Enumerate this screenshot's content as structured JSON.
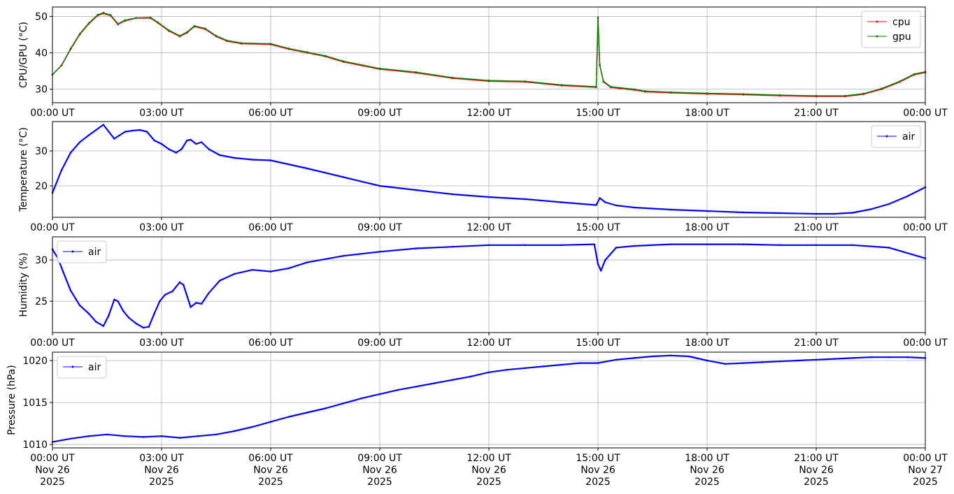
{
  "chart_data": [
    {
      "type": "line",
      "ylabel": "CPU/GPU (°C)",
      "ylim": [
        26.3,
        52.6
      ],
      "yticks": [
        30,
        40,
        50
      ],
      "xlim": [
        0,
        24
      ],
      "xticks": [
        0,
        3,
        6,
        9,
        12,
        15,
        18,
        21,
        24
      ],
      "xtick_labels": [
        "00:00 UT",
        "03:00 UT",
        "06:00 UT",
        "09:00 UT",
        "12:00 UT",
        "15:00 UT",
        "18:00 UT",
        "21:00 UT",
        "00:00 UT"
      ],
      "grid": true,
      "legend": "upper-right",
      "series": [
        {
          "name": "cpu",
          "color": "#ff0000",
          "x": [
            0,
            0.25,
            0.5,
            0.75,
            1.0,
            1.25,
            1.4,
            1.6,
            1.8,
            2.0,
            2.3,
            2.7,
            2.9,
            3.2,
            3.5,
            3.7,
            3.9,
            4.2,
            4.5,
            4.8,
            5.2,
            6.0,
            6.5,
            7.0,
            7.5,
            8.0,
            9.0,
            10.0,
            11.0,
            12.0,
            13.0,
            14.0,
            14.95,
            15.0,
            15.05,
            15.15,
            15.35,
            15.6,
            16.0,
            16.3,
            17.0,
            18.0,
            19.0,
            20.0,
            21.0,
            21.8,
            22.3,
            22.8,
            23.3,
            23.7,
            24.0
          ],
          "y": [
            34.0,
            36.5,
            41.0,
            45.0,
            48.0,
            50.3,
            50.8,
            50.2,
            47.8,
            48.8,
            49.5,
            49.5,
            48.2,
            46.0,
            44.5,
            45.5,
            47.2,
            46.5,
            44.5,
            43.2,
            42.5,
            42.3,
            41.0,
            40.0,
            39.0,
            37.5,
            35.5,
            34.5,
            33.0,
            32.2,
            32.0,
            31.0,
            30.5,
            49.5,
            36.5,
            32.0,
            30.5,
            30.2,
            29.8,
            29.3,
            29.0,
            28.7,
            28.5,
            28.2,
            28.0,
            28.0,
            28.6,
            30.0,
            32.0,
            34.0,
            34.6
          ]
        },
        {
          "name": "gpu",
          "color": "#008000",
          "x": [
            0,
            0.25,
            0.5,
            0.75,
            1.0,
            1.25,
            1.4,
            1.6,
            1.8,
            2.0,
            2.3,
            2.7,
            2.9,
            3.2,
            3.5,
            3.7,
            3.9,
            4.2,
            4.5,
            4.8,
            5.2,
            6.0,
            6.5,
            7.0,
            7.5,
            8.0,
            9.0,
            10.0,
            11.0,
            12.0,
            13.0,
            14.0,
            14.95,
            15.0,
            15.05,
            15.15,
            15.35,
            15.6,
            16.0,
            16.3,
            17.0,
            18.0,
            19.0,
            20.0,
            21.0,
            21.8,
            22.3,
            22.8,
            23.3,
            23.7,
            24.0
          ],
          "y": [
            34.0,
            36.6,
            41.2,
            45.2,
            48.2,
            50.5,
            51.0,
            50.4,
            48.0,
            49.0,
            49.6,
            49.7,
            48.4,
            46.2,
            44.7,
            45.7,
            47.4,
            46.7,
            44.7,
            43.4,
            42.7,
            42.5,
            41.2,
            40.2,
            39.2,
            37.7,
            35.7,
            34.7,
            33.2,
            32.4,
            32.2,
            31.2,
            30.7,
            49.7,
            36.7,
            32.2,
            30.7,
            30.4,
            30.0,
            29.5,
            29.2,
            28.9,
            28.7,
            28.4,
            28.2,
            28.2,
            28.8,
            30.2,
            32.2,
            34.2,
            34.8
          ]
        }
      ]
    },
    {
      "type": "line",
      "ylabel": "Temperature (°C)",
      "ylim": [
        11.0,
        38.4
      ],
      "yticks": [
        20,
        30
      ],
      "xlim": [
        0,
        24
      ],
      "xticks": [
        0,
        3,
        6,
        9,
        12,
        15,
        18,
        21,
        24
      ],
      "xtick_labels": [
        "00:00 UT",
        "03:00 UT",
        "06:00 UT",
        "09:00 UT",
        "12:00 UT",
        "15:00 UT",
        "18:00 UT",
        "21:00 UT",
        "00:00 UT"
      ],
      "grid": true,
      "legend": "upper-right",
      "series": [
        {
          "name": "air",
          "color": "#0000ff",
          "x": [
            0,
            0.25,
            0.5,
            0.75,
            1.0,
            1.2,
            1.4,
            1.55,
            1.7,
            1.85,
            2.0,
            2.2,
            2.4,
            2.6,
            2.8,
            3.0,
            3.2,
            3.4,
            3.55,
            3.7,
            3.8,
            3.95,
            4.1,
            4.3,
            4.6,
            5.0,
            5.5,
            6.0,
            7.0,
            8.0,
            9.0,
            10.0,
            11.0,
            12.0,
            13.0,
            14.0,
            14.95,
            15.05,
            15.2,
            15.5,
            16.0,
            17.0,
            18.0,
            19.0,
            20.0,
            21.0,
            21.5,
            22.0,
            22.5,
            23.0,
            23.5,
            24.0
          ],
          "y": [
            18.0,
            24.5,
            29.5,
            32.5,
            34.5,
            36.0,
            37.5,
            35.5,
            33.5,
            34.5,
            35.5,
            35.8,
            36.0,
            35.5,
            33.0,
            32.0,
            30.5,
            29.5,
            30.5,
            33.0,
            33.2,
            32.0,
            32.5,
            30.5,
            28.8,
            28.0,
            27.5,
            27.3,
            25.0,
            22.5,
            20.0,
            18.8,
            17.6,
            16.8,
            16.2,
            15.3,
            14.5,
            16.5,
            15.3,
            14.4,
            13.8,
            13.2,
            12.8,
            12.4,
            12.2,
            12.0,
            12.0,
            12.3,
            13.3,
            14.8,
            17.0,
            19.6
          ]
        }
      ]
    },
    {
      "type": "line",
      "ylabel": "Humidity (%)",
      "ylim": [
        21.2,
        32.8
      ],
      "yticks": [
        25,
        30
      ],
      "xlim": [
        0,
        24
      ],
      "xticks": [
        0,
        3,
        6,
        9,
        12,
        15,
        18,
        21,
        24
      ],
      "xtick_labels": [
        "00:00 UT",
        "03:00 UT",
        "06:00 UT",
        "09:00 UT",
        "12:00 UT",
        "15:00 UT",
        "18:00 UT",
        "21:00 UT",
        "00:00 UT"
      ],
      "grid": true,
      "legend": "upper-left",
      "series": [
        {
          "name": "air",
          "color": "#0000ff",
          "x": [
            0,
            0.15,
            0.3,
            0.5,
            0.75,
            1.0,
            1.2,
            1.4,
            1.55,
            1.7,
            1.8,
            1.95,
            2.1,
            2.3,
            2.5,
            2.65,
            2.8,
            2.95,
            3.1,
            3.3,
            3.5,
            3.6,
            3.8,
            3.95,
            4.1,
            4.3,
            4.6,
            5.0,
            5.5,
            6.0,
            6.5,
            7.0,
            8.0,
            9.0,
            10.0,
            11.0,
            12.0,
            13.0,
            14.0,
            14.9,
            15.0,
            15.08,
            15.2,
            15.5,
            16.0,
            17.0,
            18.0,
            19.0,
            20.0,
            21.0,
            22.0,
            23.0,
            24.0
          ],
          "y": [
            31.3,
            30.2,
            28.5,
            26.3,
            24.5,
            23.5,
            22.5,
            22.0,
            23.3,
            25.2,
            25.0,
            23.8,
            23.0,
            22.3,
            21.8,
            21.9,
            23.5,
            25.0,
            25.8,
            26.2,
            27.3,
            27.0,
            24.3,
            24.8,
            24.7,
            26.0,
            27.5,
            28.3,
            28.8,
            28.6,
            29.0,
            29.7,
            30.5,
            31.0,
            31.4,
            31.6,
            31.8,
            31.8,
            31.8,
            31.9,
            29.5,
            28.7,
            30.0,
            31.5,
            31.7,
            31.9,
            31.9,
            31.9,
            31.8,
            31.8,
            31.8,
            31.5,
            30.2
          ]
        }
      ]
    },
    {
      "type": "line",
      "ylabel": "Pressure (hPa)",
      "ylim": [
        1009.6,
        1021.0
      ],
      "yticks": [
        1010,
        1015,
        1020
      ],
      "xlim": [
        0,
        24
      ],
      "xticks": [
        0,
        3,
        6,
        9,
        12,
        15,
        18,
        21,
        24
      ],
      "xtick_labels": [
        "00:00 UT",
        "03:00 UT",
        "06:00 UT",
        "09:00 UT",
        "12:00 UT",
        "15:00 UT",
        "18:00 UT",
        "21:00 UT",
        "00:00 UT"
      ],
      "xtick_date": [
        "Nov 26",
        "Nov 26",
        "Nov 26",
        "Nov 26",
        "Nov 26",
        "Nov 26",
        "Nov 26",
        "Nov 26",
        "Nov 27"
      ],
      "xtick_year": [
        "2025",
        "2025",
        "2025",
        "2025",
        "2025",
        "2025",
        "2025",
        "2025",
        "2025"
      ],
      "grid": true,
      "legend": "upper-left",
      "series": [
        {
          "name": "air",
          "color": "#0000ff",
          "x": [
            0,
            0.5,
            1.0,
            1.5,
            2.0,
            2.5,
            3.0,
            3.5,
            4.0,
            4.5,
            5.0,
            5.5,
            6.0,
            6.5,
            7.0,
            7.5,
            8.0,
            8.5,
            9.0,
            9.5,
            10.0,
            10.5,
            11.0,
            11.5,
            12.0,
            12.5,
            13.0,
            13.5,
            14.0,
            14.5,
            15.0,
            15.5,
            16.0,
            16.5,
            17.0,
            17.5,
            18.0,
            18.5,
            19.0,
            19.5,
            20.0,
            20.5,
            21.0,
            21.5,
            22.0,
            22.5,
            23.0,
            23.5,
            24.0
          ],
          "y": [
            1010.3,
            1010.7,
            1011.0,
            1011.2,
            1011.0,
            1010.9,
            1011.0,
            1010.8,
            1011.0,
            1011.2,
            1011.6,
            1012.1,
            1012.7,
            1013.3,
            1013.8,
            1014.3,
            1014.9,
            1015.5,
            1016.0,
            1016.5,
            1016.9,
            1017.3,
            1017.7,
            1018.1,
            1018.6,
            1018.9,
            1019.1,
            1019.3,
            1019.5,
            1019.7,
            1019.7,
            1020.1,
            1020.3,
            1020.5,
            1020.6,
            1020.5,
            1020.0,
            1019.6,
            1019.7,
            1019.8,
            1019.9,
            1020.0,
            1020.1,
            1020.2,
            1020.3,
            1020.4,
            1020.4,
            1020.4,
            1020.3
          ]
        }
      ]
    }
  ]
}
